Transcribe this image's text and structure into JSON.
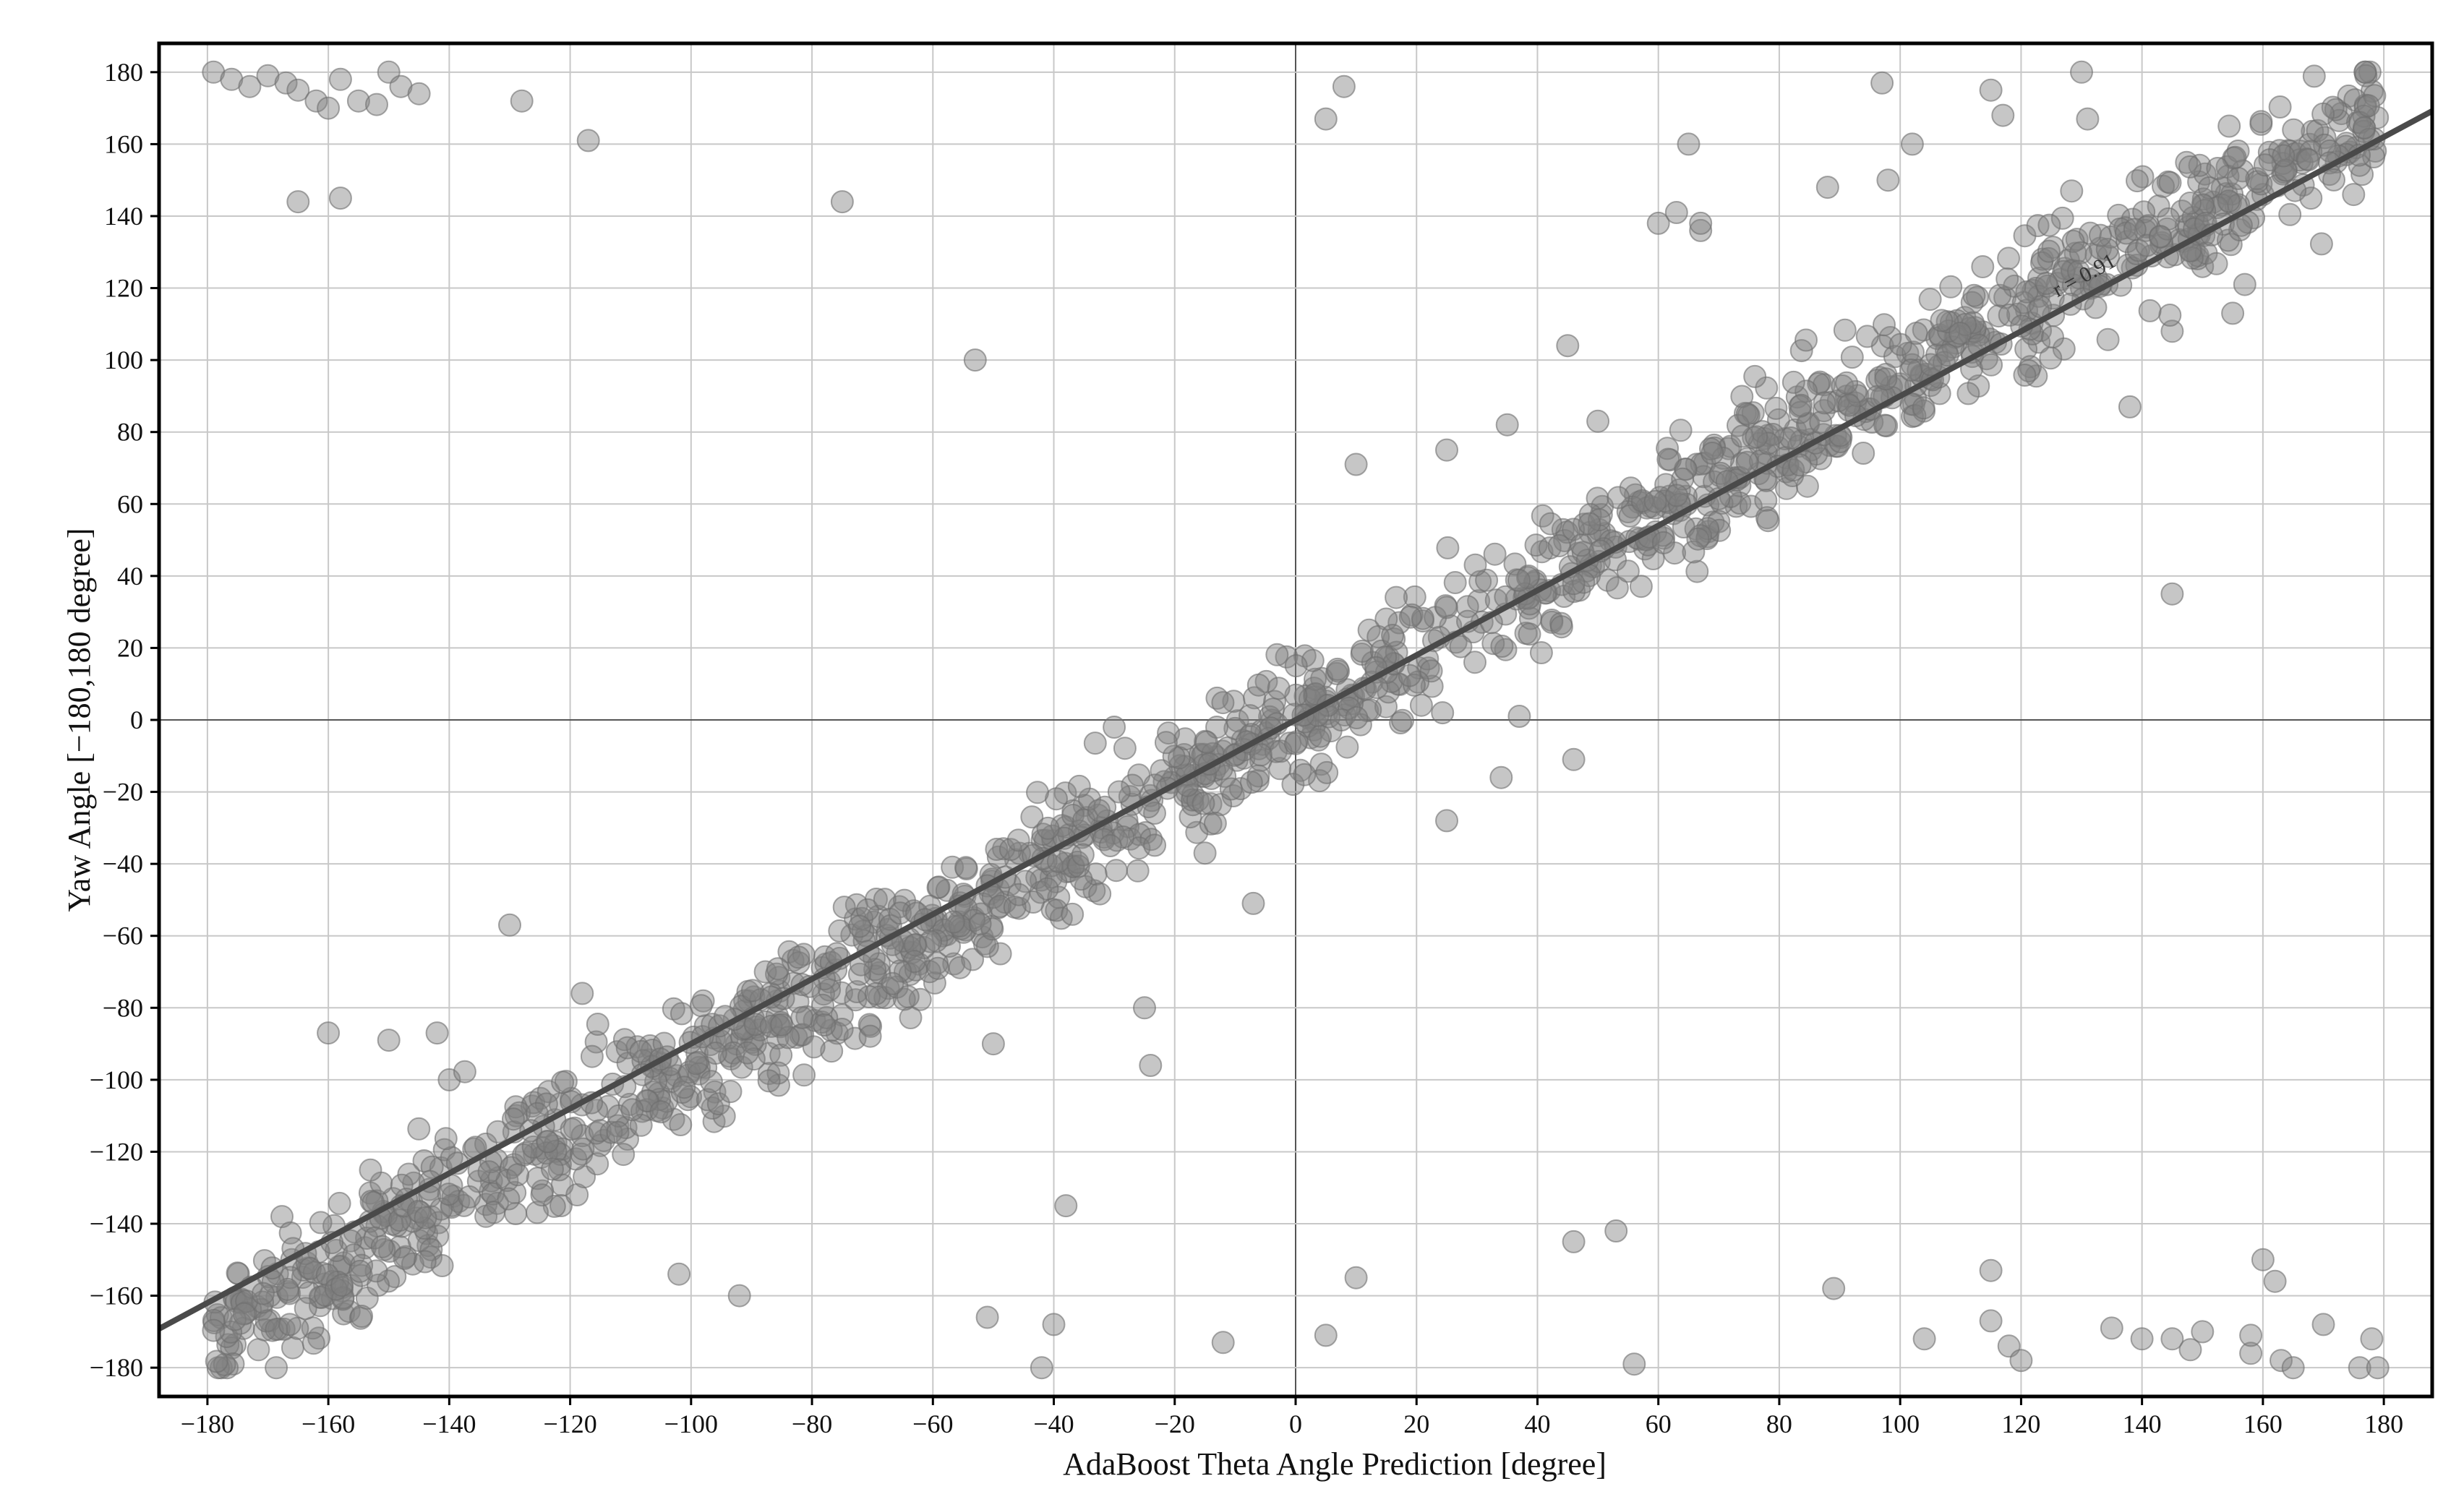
{
  "chart_data": {
    "type": "scatter",
    "title": "",
    "xlabel": "AdaBoost Theta Angle Prediction [degree]",
    "ylabel": "Yaw Angle [−180,180 degree]",
    "xlim": [
      -188,
      188
    ],
    "ylim": [
      -188,
      188
    ],
    "xticks": [
      -180,
      -160,
      -140,
      -120,
      -100,
      -80,
      -60,
      -40,
      -20,
      0,
      20,
      40,
      60,
      80,
      100,
      120,
      140,
      160,
      180
    ],
    "yticks": [
      -180,
      -160,
      -140,
      -120,
      -100,
      -80,
      -60,
      -40,
      -20,
      0,
      20,
      40,
      60,
      80,
      100,
      120,
      140,
      160,
      180
    ],
    "xtick_labels": [
      "−180",
      "−160",
      "−140",
      "−120",
      "−100",
      "−80",
      "−60",
      "−40",
      "−20",
      "0",
      "20",
      "40",
      "60",
      "80",
      "100",
      "120",
      "140",
      "160",
      "180"
    ],
    "ytick_labels": [
      "−180",
      "−160",
      "−140",
      "−120",
      "−100",
      "−80",
      "−60",
      "−40",
      "−20",
      "0",
      "20",
      "40",
      "60",
      "80",
      "100",
      "120",
      "140",
      "160",
      "180"
    ],
    "grid": true,
    "zero_lines": true,
    "annotation": "r = 0.91",
    "regression_line": {
      "slope": 0.9,
      "intercept": 0
    },
    "point_color": "#808080",
    "line_color": "#4a4a4a",
    "point_generation": {
      "n_diagonal": 1500,
      "slope": 0.95,
      "spread": 9,
      "seed": 7
    },
    "points": [
      [
        -179,
        180
      ],
      [
        -176,
        178
      ],
      [
        -173,
        176
      ],
      [
        -170,
        179
      ],
      [
        -167,
        177
      ],
      [
        -165,
        175
      ],
      [
        -162,
        172
      ],
      [
        -160,
        170
      ],
      [
        -158,
        178
      ],
      [
        -155,
        172
      ],
      [
        -152,
        171
      ],
      [
        -150,
        180
      ],
      [
        -148,
        176
      ],
      [
        -145,
        174
      ],
      [
        -128,
        172
      ],
      [
        -117,
        161
      ],
      [
        -165,
        144
      ],
      [
        -158,
        145
      ],
      [
        -75,
        144
      ],
      [
        -53,
        100
      ],
      [
        5,
        167
      ],
      [
        8,
        176
      ],
      [
        -160,
        -87
      ],
      [
        -150,
        -89
      ],
      [
        -142,
        -87
      ],
      [
        -140,
        -100
      ],
      [
        -130,
        -57
      ],
      [
        -118,
        -76
      ],
      [
        -102,
        -154
      ],
      [
        -92,
        -160
      ],
      [
        -75,
        -82
      ],
      [
        -50,
        -90
      ],
      [
        -38,
        -135
      ],
      [
        -30,
        -2
      ],
      [
        -25,
        -80
      ],
      [
        -24,
        -96
      ],
      [
        -51,
        -166
      ],
      [
        -42,
        -180
      ],
      [
        -40,
        -168
      ],
      [
        -12,
        -173
      ],
      [
        5,
        -171
      ],
      [
        10,
        -155
      ],
      [
        -7,
        -51
      ],
      [
        -15,
        -37
      ],
      [
        34,
        -16
      ],
      [
        37,
        1
      ],
      [
        25,
        -28
      ],
      [
        46,
        -11
      ],
      [
        46,
        -145
      ],
      [
        53,
        -142
      ],
      [
        56,
        -179
      ],
      [
        89,
        -158
      ],
      [
        104,
        -172
      ],
      [
        115,
        -153
      ],
      [
        115,
        -167
      ],
      [
        118,
        -174
      ],
      [
        120,
        -178
      ],
      [
        135,
        -169
      ],
      [
        140,
        -172
      ],
      [
        145,
        -172
      ],
      [
        148,
        -175
      ],
      [
        150,
        -170
      ],
      [
        158,
        -176
      ],
      [
        158,
        -171
      ],
      [
        160,
        -150
      ],
      [
        162,
        -156
      ],
      [
        163,
        -178
      ],
      [
        165,
        -180
      ],
      [
        170,
        -168
      ],
      [
        178,
        -172
      ],
      [
        176,
        -180
      ],
      [
        179,
        -180
      ],
      [
        145,
        35
      ],
      [
        138,
        87
      ],
      [
        130,
        120
      ],
      [
        97,
        177
      ],
      [
        98,
        150
      ],
      [
        102,
        160
      ],
      [
        115,
        175
      ],
      [
        117,
        168
      ],
      [
        130,
        180
      ],
      [
        131,
        167
      ],
      [
        60,
        138
      ],
      [
        65,
        160
      ],
      [
        63,
        141
      ],
      [
        67,
        136
      ],
      [
        67,
        138
      ],
      [
        45,
        104
      ],
      [
        50,
        83
      ],
      [
        35,
        82
      ],
      [
        25,
        75
      ],
      [
        10,
        71
      ],
      [
        88,
        148
      ],
      [
        175,
        146
      ],
      [
        160,
        146
      ],
      [
        150,
        126
      ],
      [
        157,
        121
      ],
      [
        155,
        113
      ],
      [
        145,
        108
      ]
    ]
  }
}
